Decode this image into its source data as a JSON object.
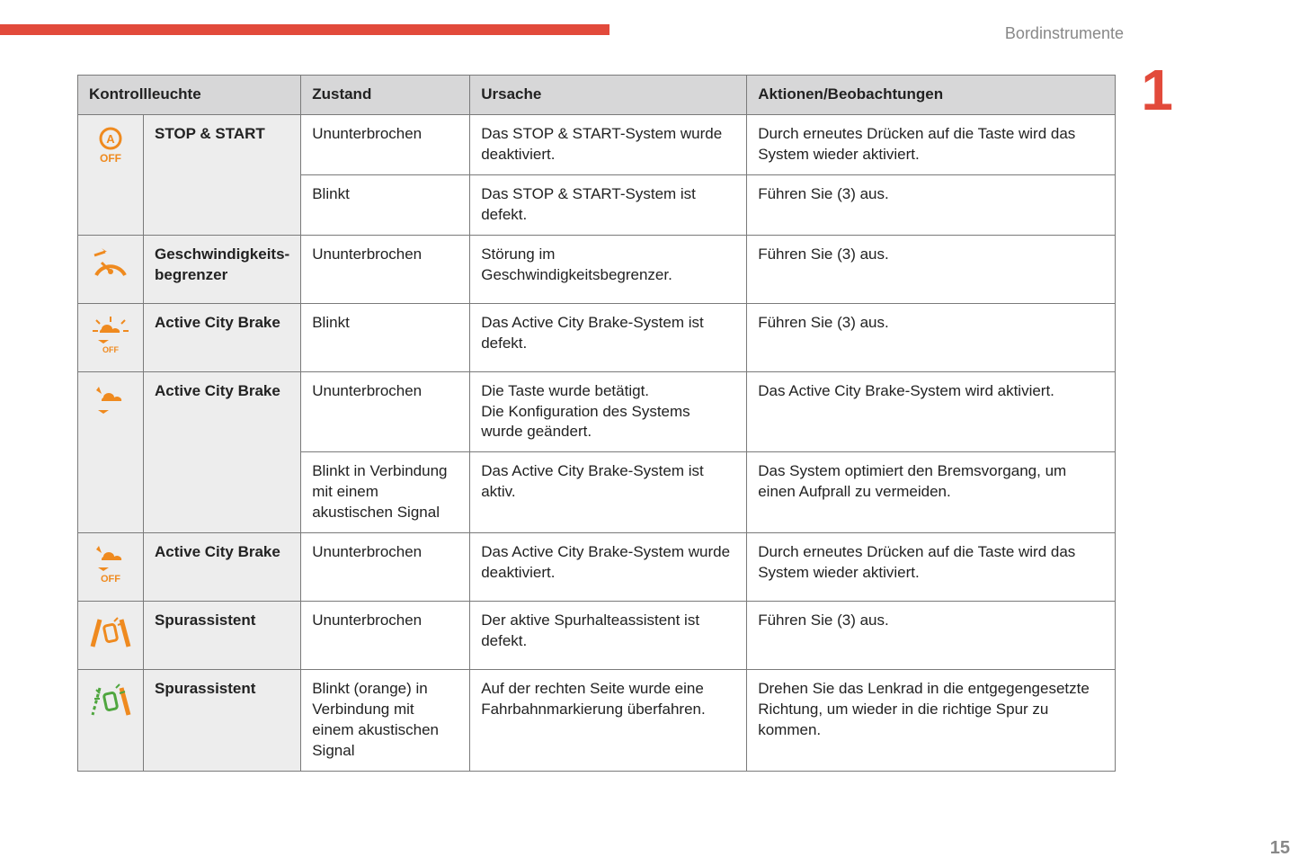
{
  "page": {
    "section_label": "Bordinstrumente",
    "chapter_number": "1",
    "page_number": "15",
    "accent_color": "#e24a3b",
    "icon_color": "#ef8a1f",
    "header_bg": "#d7d7d8",
    "name_bg": "#ededed",
    "border_color": "#7a7a7a"
  },
  "table": {
    "headers": {
      "col1": "Kontrollleuchte",
      "col2": "Zustand",
      "col3": "Ursache",
      "col4": "Aktionen/Beobachtungen"
    },
    "rows": [
      {
        "icon": "stop-start-off",
        "name": "STOP & START",
        "sub": [
          {
            "state": "Ununterbrochen",
            "cause": "Das STOP & START-System wurde deaktiviert.",
            "action": "Durch erneutes Drücken auf die Taste wird das System wieder aktiviert."
          },
          {
            "state": "Blinkt",
            "cause": "Das STOP & START-System ist defekt.",
            "action": "Führen Sie (3) aus."
          }
        ]
      },
      {
        "icon": "speed-limiter",
        "name": "Geschwindigkeits­begrenzer",
        "sub": [
          {
            "state": "Ununterbrochen",
            "cause": "Störung im Geschwindigkeitsbegrenzer.",
            "action": "Führen Sie (3) aus."
          }
        ]
      },
      {
        "icon": "acb-off-rays",
        "name": "Active City Brake",
        "sub": [
          {
            "state": "Blinkt",
            "cause": "Das Active City Brake-System ist defekt.",
            "action": "Führen Sie (3) aus."
          }
        ]
      },
      {
        "icon": "acb-on",
        "name": "Active City Brake",
        "sub": [
          {
            "state": "Ununterbrochen",
            "cause": "Die Taste wurde betätigt.\nDie Konfiguration des Systems wurde geändert.",
            "action": "Das Active City Brake-System wird aktiviert."
          },
          {
            "state": "Blinkt in Verbindung mit einem akustischen Signal",
            "cause": "Das Active City Brake-System ist aktiv.",
            "action": "Das System optimiert den Bremsvorgang, um einen Aufprall zu vermeiden."
          }
        ]
      },
      {
        "icon": "acb-off",
        "name": "Active City Brake",
        "sub": [
          {
            "state": "Ununterbrochen",
            "cause": "Das Active City Brake-System wurde deaktiviert.",
            "action": "Durch erneutes Drücken auf die Taste wird das System wieder aktiviert."
          }
        ]
      },
      {
        "icon": "lane-assist",
        "name": "Spurassistent",
        "sub": [
          {
            "state": "Ununterbrochen",
            "cause": "Der aktive Spurhalteassistent ist defekt.",
            "action": "Führen Sie (3) aus."
          }
        ]
      },
      {
        "icon": "lane-assist-green",
        "name": "Spurassistent",
        "sub": [
          {
            "state": "Blinkt (orange) in Verbindung mit einem akustischen Signal",
            "cause": "Auf der rechten Seite wurde eine Fahrbahnmarkierung überfahren.",
            "action": "Drehen Sie das Lenkrad in die entgegengesetzte Richtung, um wieder in die richtige Spur zu kommen."
          }
        ]
      }
    ]
  }
}
